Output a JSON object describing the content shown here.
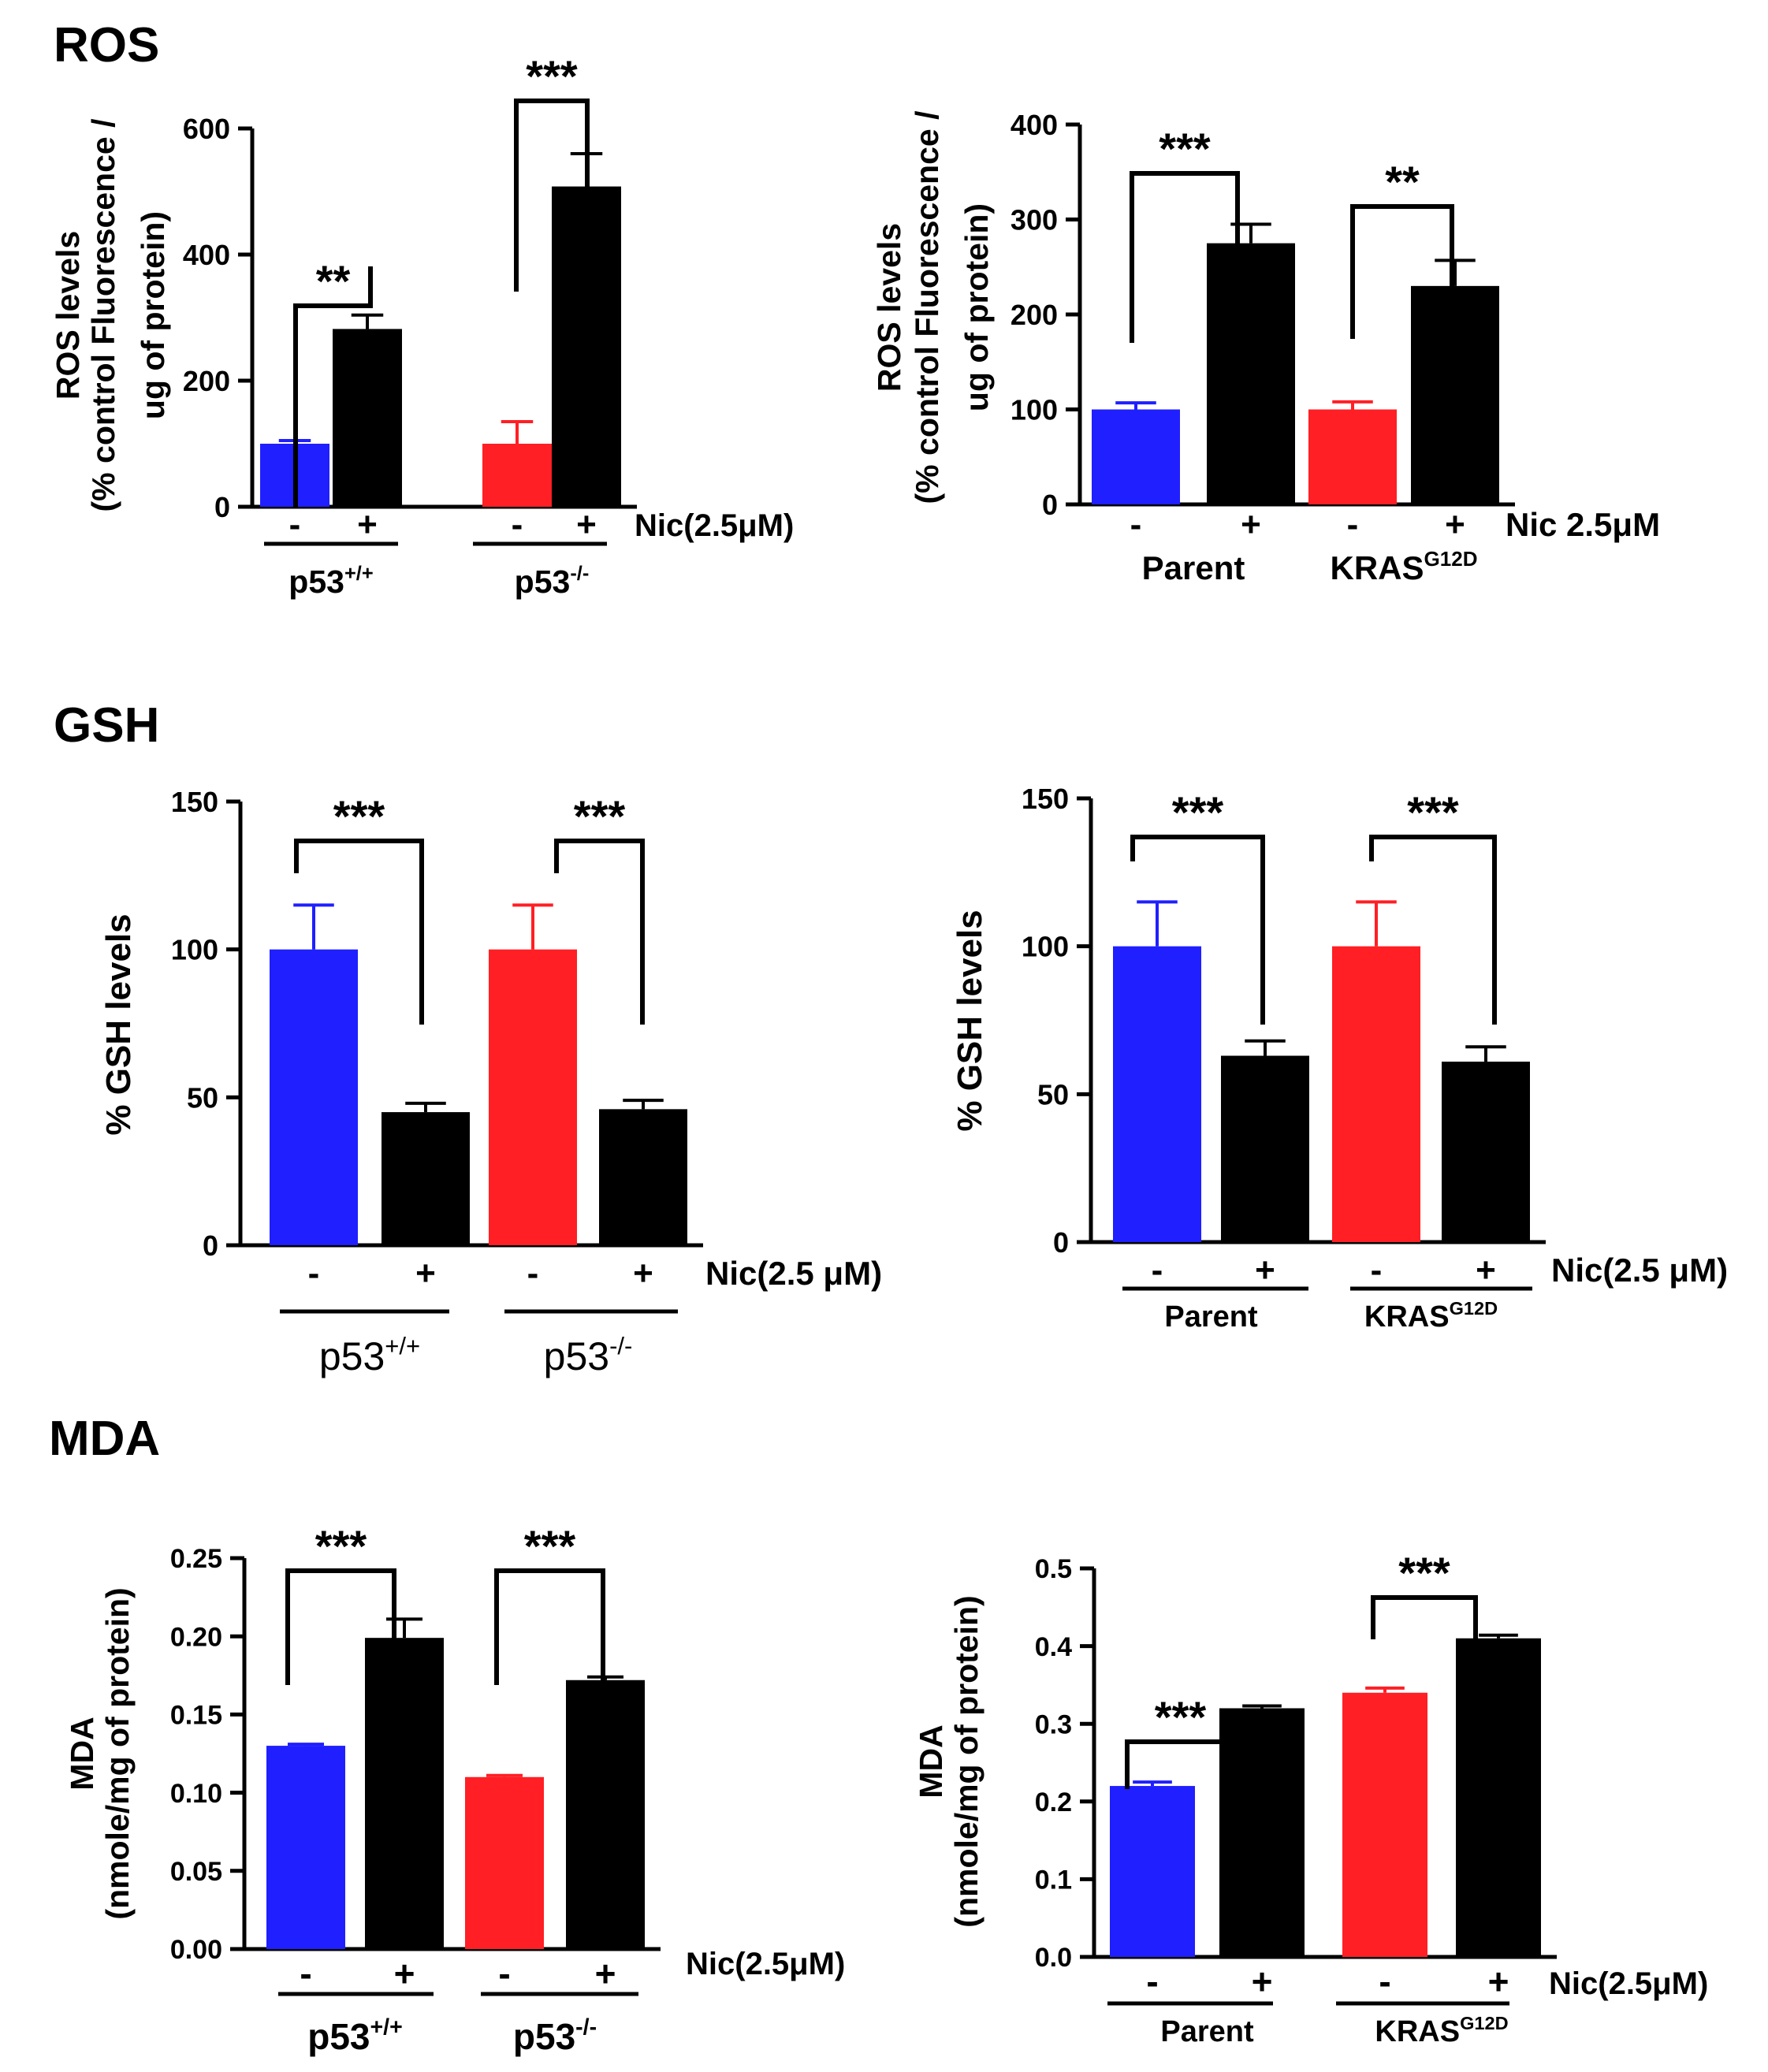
{
  "sections": [
    {
      "title": "ROS"
    },
    {
      "title": "GSH"
    },
    {
      "title": "MDA"
    }
  ],
  "colors": {
    "control_p53": "#1f1fff",
    "control_alt": "#ff1f24",
    "treated": "#000000"
  },
  "chart_data": [
    {
      "type": "bar",
      "section": "ROS",
      "ylabel": [
        "ROS levels",
        "(% control Fluorescence /",
        "ug of protein)"
      ],
      "ylim": [
        0,
        600
      ],
      "yticks": [
        "0",
        "200",
        "400",
        "600"
      ],
      "treatment_label": "Nic(2.5μM)",
      "bar_values": [
        100,
        282,
        100,
        508
      ],
      "bar_errors": [
        5,
        22,
        35,
        52
      ],
      "bar_signs": [
        "-",
        "+",
        "-",
        "+"
      ],
      "group_labels": [
        {
          "base": "p53",
          "sup": "+/+"
        },
        {
          "base": "p53",
          "sup": "-/-"
        }
      ],
      "significance": [
        "**",
        "***"
      ]
    },
    {
      "type": "bar",
      "section": "ROS",
      "ylabel": [
        "ROS levels",
        "(% control Fluorescence /",
        "ug of protein)"
      ],
      "ylim": [
        0,
        400
      ],
      "yticks": [
        "0",
        "100",
        "200",
        "300",
        "400"
      ],
      "treatment_label": "Nic 2.5μM",
      "bar_values": [
        100,
        275,
        100,
        230
      ],
      "bar_errors": [
        7,
        20,
        8,
        27
      ],
      "bar_signs": [
        "-",
        "+",
        "-",
        "+"
      ],
      "group_labels": [
        {
          "base": "Parent",
          "sup": ""
        },
        {
          "base": "KRAS",
          "sup": "G12D"
        }
      ],
      "significance": [
        "***",
        "**"
      ]
    },
    {
      "type": "bar",
      "section": "GSH",
      "ylabel": [
        "% GSH levels"
      ],
      "ylim": [
        0,
        150
      ],
      "yticks": [
        "0",
        "50",
        "100",
        "150"
      ],
      "treatment_label": "Nic(2.5 μM)",
      "bar_values": [
        100,
        45,
        100,
        46
      ],
      "bar_errors": [
        15,
        3,
        15,
        3
      ],
      "bar_signs": [
        "-",
        "+",
        "-",
        "+"
      ],
      "group_labels": [
        {
          "base": "p53",
          "sup": "+/+"
        },
        {
          "base": "p53",
          "sup": "-/-"
        }
      ],
      "significance": [
        "***",
        "***"
      ]
    },
    {
      "type": "bar",
      "section": "GSH",
      "ylabel": [
        "% GSH levels"
      ],
      "ylim": [
        0,
        150
      ],
      "yticks": [
        "0",
        "50",
        "100",
        "150"
      ],
      "treatment_label": "Nic(2.5 μM)",
      "bar_values": [
        100,
        63,
        100,
        61
      ],
      "bar_errors": [
        15,
        5,
        15,
        5
      ],
      "bar_signs": [
        "-",
        "+",
        "-",
        "+"
      ],
      "group_labels": [
        {
          "base": "Parent",
          "sup": ""
        },
        {
          "base": "KRAS",
          "sup": "G12D"
        }
      ],
      "significance": [
        "***",
        "***"
      ]
    },
    {
      "type": "bar",
      "section": "MDA",
      "ylabel": [
        "MDA",
        "(nmole/mg of protein)"
      ],
      "ylim": [
        0,
        0.25
      ],
      "yticks": [
        "0.00",
        "0.05",
        "0.10",
        "0.15",
        "0.20",
        "0.25"
      ],
      "treatment_label": "Nic(2.5μM)",
      "bar_values": [
        0.13,
        0.199,
        0.11,
        0.172
      ],
      "bar_errors": [
        0.001,
        0.012,
        0.001,
        0.002
      ],
      "bar_signs": [
        "-",
        "+",
        "-",
        "+"
      ],
      "group_labels": [
        {
          "base": "p53",
          "sup": "+/+"
        },
        {
          "base": "p53",
          "sup": "-/-"
        }
      ],
      "significance": [
        "***",
        "***"
      ]
    },
    {
      "type": "bar",
      "section": "MDA",
      "ylabel": [
        "MDA",
        "(nmole/mg of protein)"
      ],
      "ylim": [
        0,
        0.5
      ],
      "yticks": [
        "0.0",
        "0.1",
        "0.2",
        "0.3",
        "0.4",
        "0.5"
      ],
      "treatment_label": "Nic(2.5μM)",
      "bar_values": [
        0.22,
        0.32,
        0.34,
        0.41
      ],
      "bar_errors": [
        0.005,
        0.003,
        0.006,
        0.004
      ],
      "bar_signs": [
        "-",
        "+",
        "-",
        "+"
      ],
      "group_labels": [
        {
          "base": "Parent",
          "sup": ""
        },
        {
          "base": "KRAS",
          "sup": "G12D"
        }
      ],
      "significance": [
        "***",
        "***"
      ]
    }
  ]
}
